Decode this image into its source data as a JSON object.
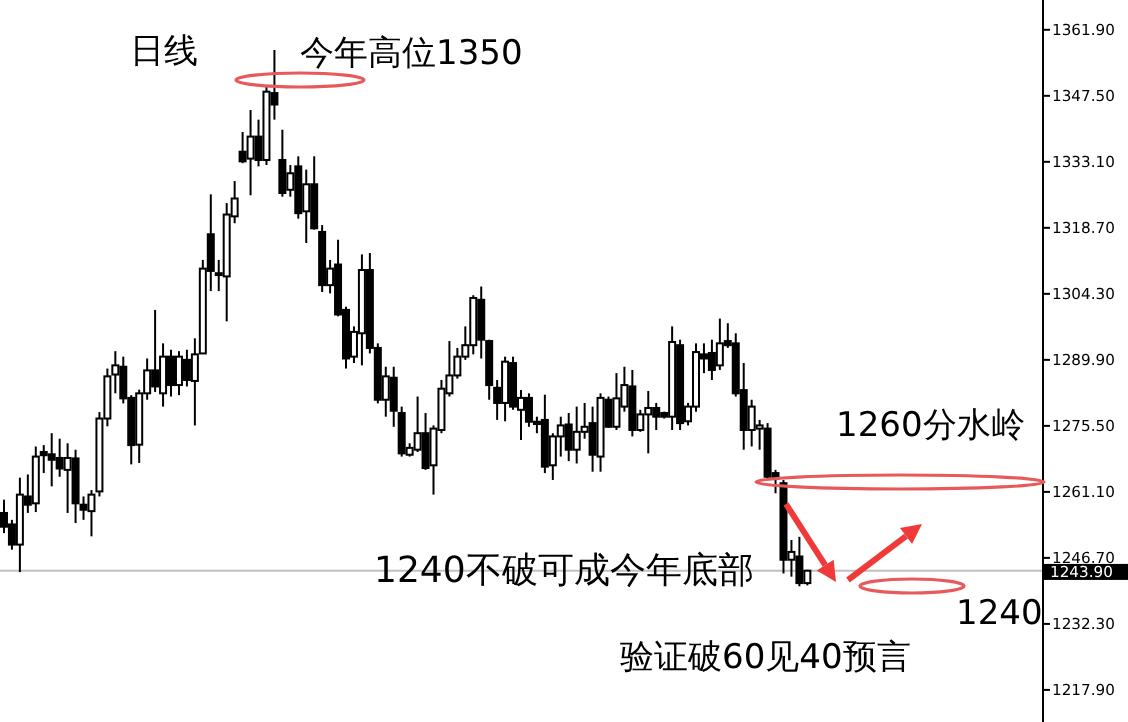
{
  "chart_data": {
    "type": "candlestick",
    "title": "日线",
    "categories": [
      null,
      null,
      null,
      null,
      null,
      null,
      null,
      null,
      null,
      null,
      null,
      null,
      null,
      null,
      null,
      null,
      null,
      null,
      null,
      null,
      null,
      null,
      null,
      null,
      null,
      null,
      null,
      null,
      null,
      null,
      null,
      null,
      null,
      null,
      null,
      null,
      null,
      null,
      null,
      null,
      null,
      null,
      null,
      null,
      null,
      null,
      null,
      null,
      null,
      null,
      null,
      null,
      null,
      null,
      null,
      null,
      null,
      null,
      null,
      null,
      null,
      null,
      null,
      null,
      null,
      null,
      null,
      null,
      null,
      null,
      null,
      null,
      null,
      null,
      null,
      null,
      null,
      null,
      null,
      null,
      null,
      null,
      null,
      null,
      null,
      null,
      null,
      null,
      null,
      null,
      null,
      null,
      null,
      null,
      null,
      null,
      null,
      null,
      null,
      null,
      null,
      null,
      null,
      null,
      null,
      null,
      null,
      null,
      null,
      null,
      null,
      null,
      null,
      null,
      null,
      null,
      null,
      null,
      null,
      null,
      null,
      null,
      null,
      null,
      null,
      null,
      null,
      null,
      null,
      null,
      null
    ],
    "ohlc": [
      [
        1256.5,
        1259.4,
        1252.1,
        1253.5
      ],
      [
        1254.0,
        1255.0,
        1248.5,
        1249.6
      ],
      [
        1249.6,
        1264.2,
        1243.6,
        1260.5
      ],
      [
        1260.1,
        1264.9,
        1256.5,
        1258.3
      ],
      [
        1258.6,
        1271.0,
        1256.7,
        1268.8
      ],
      [
        1269.8,
        1271.3,
        1265.2,
        1269.1
      ],
      [
        1269.3,
        1273.9,
        1262.3,
        1268.1
      ],
      [
        1268.5,
        1272.7,
        1264.4,
        1266.2
      ],
      [
        1265.9,
        1271.7,
        1256.5,
        1268.5
      ],
      [
        1268.4,
        1270.3,
        1254.3,
        1258.6
      ],
      [
        1258.3,
        1260.1,
        1255.0,
        1257.2
      ],
      [
        1256.9,
        1261.5,
        1251.4,
        1260.5
      ],
      [
        1261.2,
        1278.5,
        1260.1,
        1277.1
      ],
      [
        1277.1,
        1288.0,
        1275.4,
        1286.3
      ],
      [
        1286.7,
        1291.8,
        1282.6,
        1288.7
      ],
      [
        1288.4,
        1290.6,
        1280.4,
        1281.5
      ],
      [
        1281.6,
        1282.2,
        1267.1,
        1271.3
      ],
      [
        1271.4,
        1283.4,
        1267.4,
        1282.6
      ],
      [
        1282.6,
        1290.2,
        1281.2,
        1287.6
      ],
      [
        1287.6,
        1300.8,
        1282.9,
        1284.1
      ],
      [
        1282.6,
        1293.5,
        1279.7,
        1290.6
      ],
      [
        1290.6,
        1292.1,
        1281.9,
        1284.4
      ],
      [
        1284.4,
        1291.8,
        1282.2,
        1290.6
      ],
      [
        1289.9,
        1292.1,
        1284.1,
        1285.5
      ],
      [
        1285.3,
        1294.6,
        1275.6,
        1291.1
      ],
      [
        1291.3,
        1311.7,
        1291.3,
        1309.8
      ],
      [
        1317.3,
        1326.0,
        1304.9,
        1309.3
      ],
      [
        1308.8,
        1311.7,
        1304.9,
        1308.4
      ],
      [
        1308.1,
        1324.1,
        1298.3,
        1321.6
      ],
      [
        1321.2,
        1328.9,
        1319.7,
        1325.1
      ],
      [
        1335.3,
        1339.6,
        1332.8,
        1333.2
      ],
      [
        1333.8,
        1344.4,
        1325.8,
        1338.6
      ],
      [
        1338.6,
        1342.3,
        1332.1,
        1333.5
      ],
      [
        1333.5,
        1349.8,
        1332.4,
        1348.4
      ],
      [
        1348.1,
        1357.5,
        1342.3,
        1345.6
      ],
      [
        1333.5,
        1340.1,
        1325.5,
        1326.3
      ],
      [
        1327.0,
        1332.4,
        1325.5,
        1330.6
      ],
      [
        1332.1,
        1334.3,
        1320.7,
        1321.9
      ],
      [
        1322.3,
        1331.4,
        1315.4,
        1328.2
      ],
      [
        1328.2,
        1334.3,
        1318.3,
        1318.6
      ],
      [
        1317.8,
        1319.3,
        1304.7,
        1306.2
      ],
      [
        1306.2,
        1311.7,
        1304.4,
        1309.8
      ],
      [
        1310.7,
        1316.1,
        1299.4,
        1299.8
      ],
      [
        1300.8,
        1301.5,
        1288.0,
        1290.2
      ],
      [
        1290.6,
        1297.2,
        1289.2,
        1296.0
      ],
      [
        1295.7,
        1312.9,
        1288.7,
        1309.5
      ],
      [
        1309.5,
        1313.2,
        1291.3,
        1292.5
      ],
      [
        1292.5,
        1293.5,
        1280.4,
        1281.2
      ],
      [
        1281.2,
        1288.4,
        1277.5,
        1286.3
      ],
      [
        1286.0,
        1288.4,
        1275.3,
        1278.8
      ],
      [
        1278.3,
        1279.7,
        1268.8,
        1269.5
      ],
      [
        1269.2,
        1271.7,
        1268.8,
        1270.7
      ],
      [
        1270.3,
        1281.9,
        1269.8,
        1273.9
      ],
      [
        1273.9,
        1278.3,
        1265.9,
        1266.3
      ],
      [
        1266.9,
        1275.6,
        1260.5,
        1274.9
      ],
      [
        1274.6,
        1285.5,
        1273.9,
        1283.6
      ],
      [
        1282.6,
        1294.0,
        1281.9,
        1286.5
      ],
      [
        1286.5,
        1292.5,
        1285.8,
        1290.6
      ],
      [
        1290.6,
        1297.2,
        1289.9,
        1293.1
      ],
      [
        1293.1,
        1304.0,
        1291.1,
        1303.4
      ],
      [
        1303.0,
        1305.9,
        1290.2,
        1294.3
      ],
      [
        1294.0,
        1294.3,
        1281.2,
        1284.4
      ],
      [
        1283.8,
        1285.5,
        1276.8,
        1280.5
      ],
      [
        1280.5,
        1290.6,
        1276.5,
        1289.5
      ],
      [
        1289.2,
        1290.6,
        1279.0,
        1279.7
      ],
      [
        1279.0,
        1283.3,
        1272.4,
        1281.6
      ],
      [
        1281.6,
        1282.6,
        1275.3,
        1276.4
      ],
      [
        1276.4,
        1277.5,
        1273.9,
        1275.9
      ],
      [
        1276.8,
        1282.3,
        1265.2,
        1266.6
      ],
      [
        1266.9,
        1273.9,
        1263.7,
        1273.2
      ],
      [
        1273.2,
        1277.5,
        1268.8,
        1275.6
      ],
      [
        1275.8,
        1278.3,
        1267.8,
        1270.3
      ],
      [
        1270.3,
        1279.7,
        1267.3,
        1274.2
      ],
      [
        1274.2,
        1280.5,
        1272.7,
        1275.3
      ],
      [
        1276.1,
        1279.7,
        1265.5,
        1269.2
      ],
      [
        1268.8,
        1282.6,
        1265.5,
        1281.6
      ],
      [
        1281.2,
        1281.9,
        1275.1,
        1275.3
      ],
      [
        1275.3,
        1287.0,
        1274.6,
        1281.5
      ],
      [
        1279.7,
        1288.4,
        1278.6,
        1284.4
      ],
      [
        1284.1,
        1287.7,
        1273.2,
        1274.6
      ],
      [
        1274.6,
        1279.0,
        1274.2,
        1278.0
      ],
      [
        1278.0,
        1283.1,
        1269.5,
        1279.4
      ],
      [
        1279.4,
        1280.5,
        1274.6,
        1277.5
      ],
      [
        1278.3,
        1278.6,
        1277.1,
        1277.5
      ],
      [
        1277.5,
        1297.2,
        1274.6,
        1293.8
      ],
      [
        1293.1,
        1294.3,
        1274.6,
        1276.1
      ],
      [
        1276.5,
        1280.5,
        1275.6,
        1279.7
      ],
      [
        1279.7,
        1293.5,
        1278.6,
        1291.6
      ],
      [
        1291.1,
        1293.5,
        1287.0,
        1290.2
      ],
      [
        1291.4,
        1294.3,
        1285.5,
        1287.7
      ],
      [
        1288.7,
        1298.9,
        1287.7,
        1293.5
      ],
      [
        1294.0,
        1297.9,
        1292.5,
        1293.1
      ],
      [
        1293.5,
        1295.7,
        1281.9,
        1282.6
      ],
      [
        1283.3,
        1289.2,
        1270.3,
        1274.6
      ],
      [
        1274.6,
        1281.2,
        1271.0,
        1279.7
      ],
      [
        1274.9,
        1276.8,
        1270.3,
        1275.6
      ],
      [
        1274.9,
        1276.1,
        1264.0,
        1264.4
      ],
      [
        1265.2,
        1265.9,
        1260.8,
        1264.0
      ],
      [
        1263.0,
        1263.7,
        1243.3,
        1246.3
      ],
      [
        1246.3,
        1250.6,
        1242.6,
        1248.0
      ],
      [
        1247.0,
        1251.3,
        1240.5,
        1241.2
      ],
      [
        1241.2,
        1244.1,
        1240.7,
        1243.9
      ],
      null,
      null,
      null,
      null,
      null,
      null,
      null,
      null,
      null,
      null,
      null,
      null,
      null,
      null,
      null,
      null,
      null,
      null,
      null,
      null,
      null,
      null,
      null,
      null,
      null,
      null,
      null,
      null,
      null
    ],
    "ylim": [
      1210.9,
      1368.4
    ],
    "yticks": [
      {
        "value": 1217.9,
        "label": "1217.90"
      },
      {
        "value": 1232.3,
        "label": "1232.30"
      },
      {
        "value": 1246.7,
        "label": "1246.70"
      },
      {
        "value": 1261.1,
        "label": "1261.10"
      },
      {
        "value": 1275.5,
        "label": "1275.50"
      },
      {
        "value": 1289.9,
        "label": "1289.90"
      },
      {
        "value": 1304.3,
        "label": "1304.30"
      },
      {
        "value": 1318.7,
        "label": "1318.70"
      },
      {
        "value": 1333.1,
        "label": "1333.10"
      },
      {
        "value": 1347.5,
        "label": "1347.50"
      },
      {
        "value": 1361.9,
        "label": "1361.90"
      }
    ],
    "tick_labels": "y",
    "ref_lines": [
      {
        "axis": "y",
        "value": 1243.9,
        "label": "1243.90",
        "color": "#c0c0c0"
      }
    ],
    "annotations": [
      "今年高位1350",
      "1260分水岭",
      "1240不破可成今年底部",
      "1240",
      "验证破60见40预言"
    ]
  }
}
